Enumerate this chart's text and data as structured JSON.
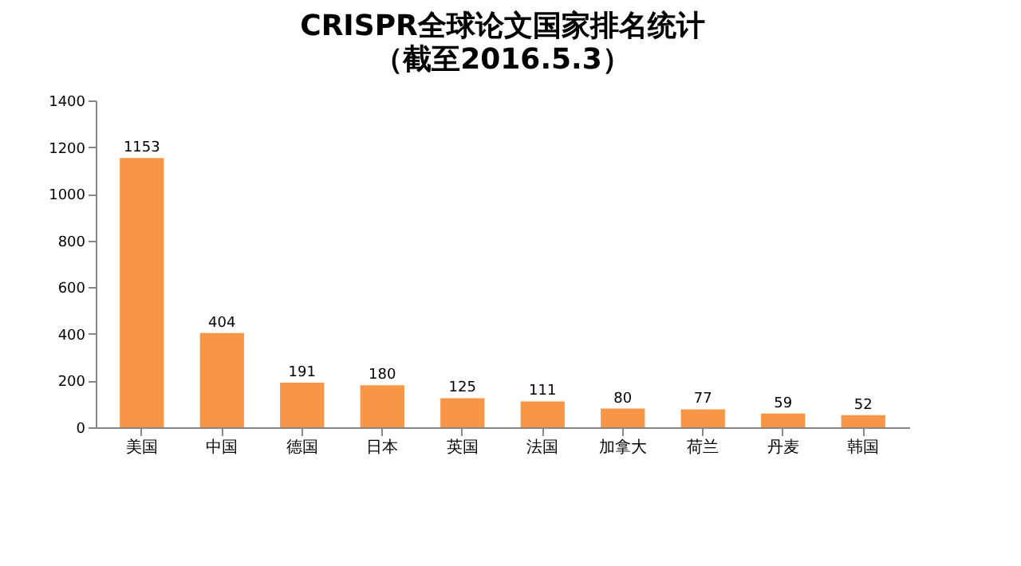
{
  "chart_data": {
    "type": "bar",
    "title": "CRISPR全球论文国家排名统计",
    "subtitle": "（截至2016.5.3）",
    "categories": [
      "美国",
      "中国",
      "德国",
      "日本",
      "英国",
      "法国",
      "加拿大",
      "荷兰",
      "丹麦",
      "韩国"
    ],
    "values": [
      1153,
      404,
      191,
      180,
      125,
      111,
      80,
      77,
      59,
      52
    ],
    "color": "#f79646",
    "ylim": [
      0,
      1400
    ],
    "yticks": [
      0,
      200,
      400,
      600,
      800,
      1000,
      1200,
      1400
    ],
    "grid": false,
    "data_labels": true
  }
}
